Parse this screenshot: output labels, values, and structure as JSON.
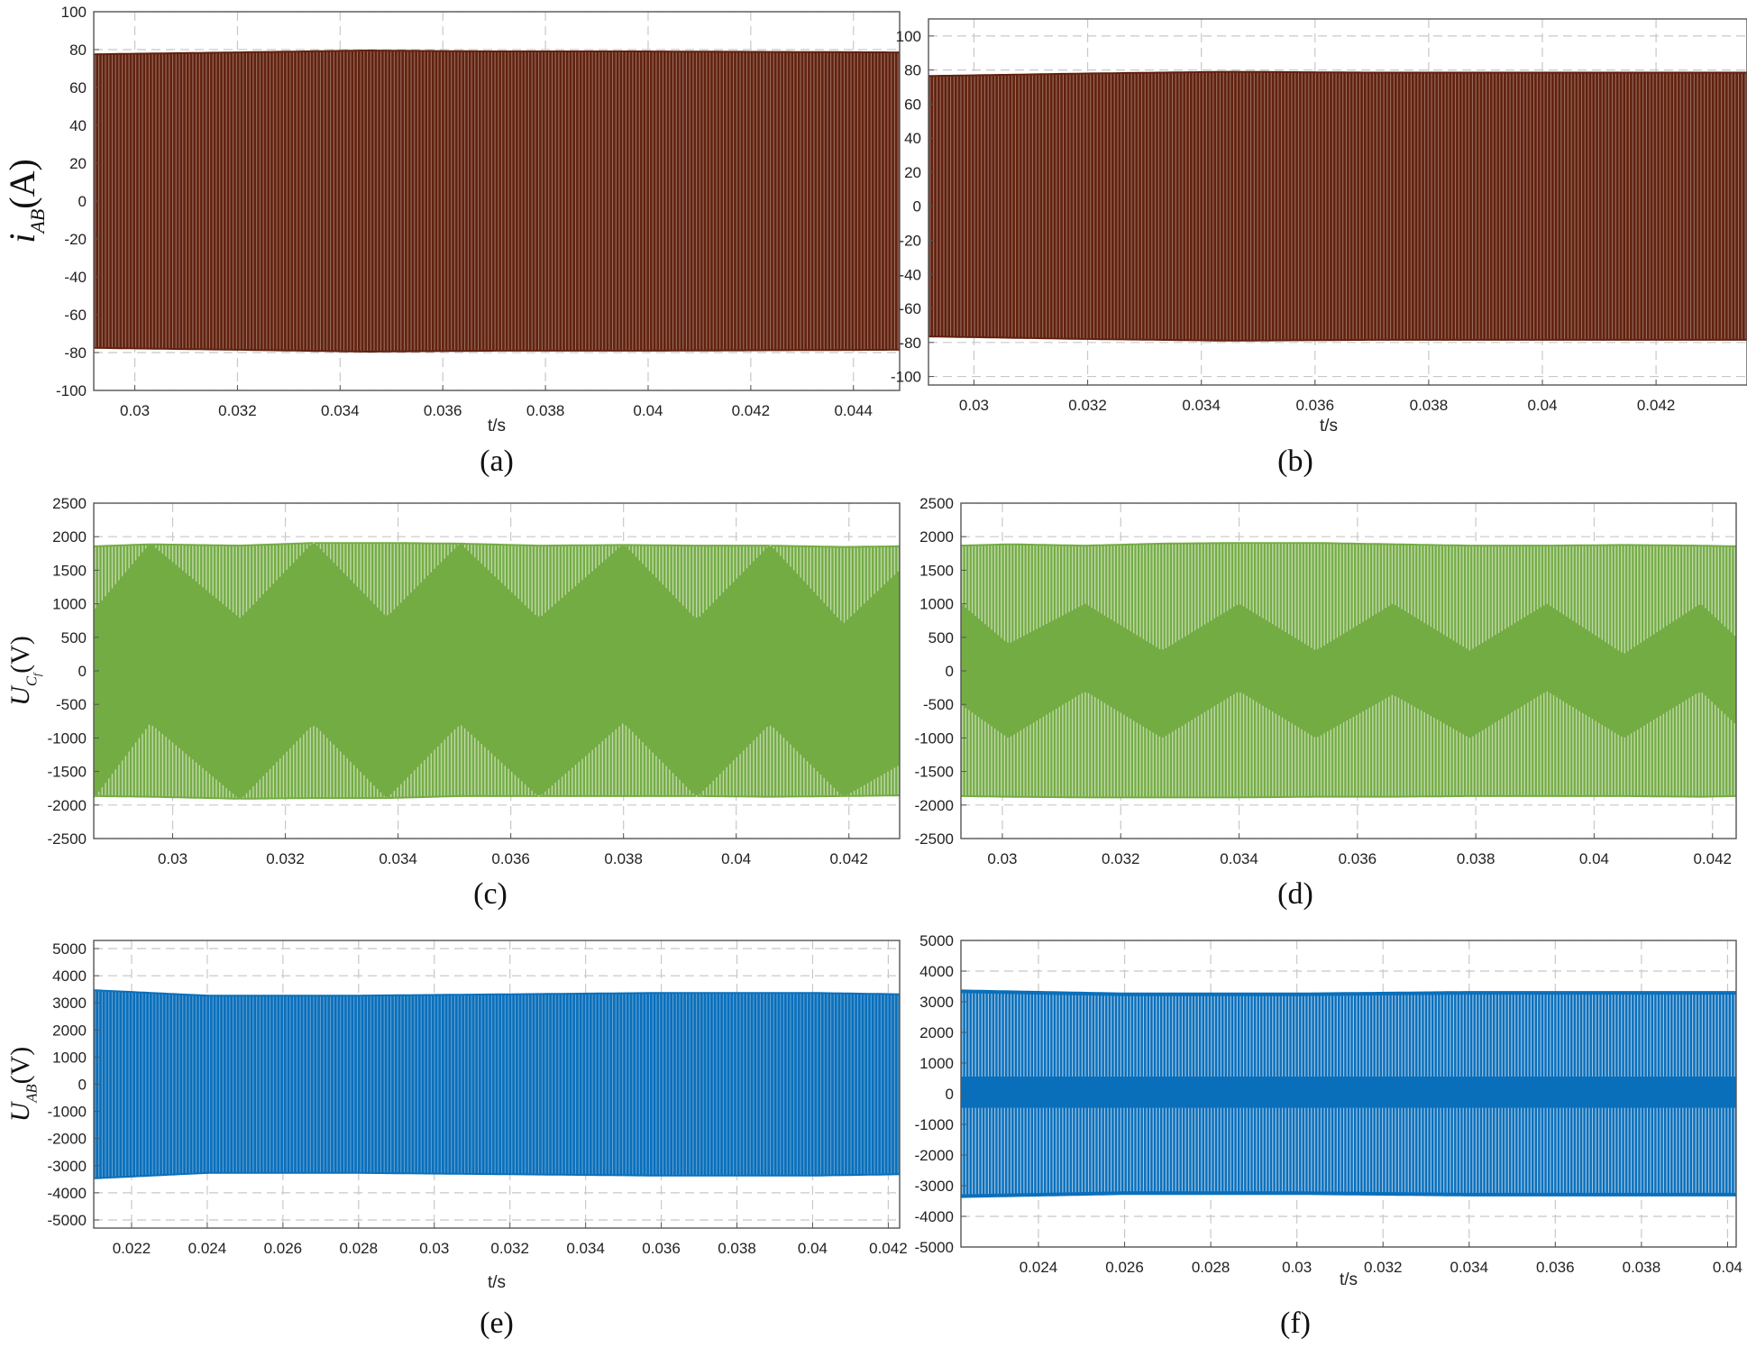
{
  "figure": {
    "colors": {
      "brown": "#62220f",
      "green": "#74ac44",
      "blue": "#0a6fbb",
      "grid": "#c8c8c8",
      "frame": "#555555"
    }
  },
  "chart_data": [
    {
      "id": "a",
      "type": "line",
      "caption": "(a)",
      "xlabel": "t/s",
      "ylabel": {
        "main": "i",
        "sub": "AB",
        "unit": "(A)"
      },
      "xlim": [
        0.0292,
        0.0449
      ],
      "ylim": [
        -100,
        100
      ],
      "xticks": [
        0.03,
        0.032,
        0.034,
        0.036,
        0.038,
        0.04,
        0.042,
        0.044
      ],
      "xtick_labels": [
        "0.03",
        "0.032",
        "0.034",
        "0.036",
        "0.038",
        "0.04",
        "0.042",
        "0.044"
      ],
      "yticks": [
        -100,
        -80,
        -60,
        -40,
        -20,
        0,
        20,
        40,
        60,
        80,
        100
      ],
      "ytick_labels": [
        "-100",
        "-80",
        "-60",
        "-40",
        "-20",
        "0",
        "20",
        "40",
        "60",
        "80",
        "100"
      ],
      "grid": true,
      "color": "brown",
      "series": [
        {
          "x": [
            0.0292,
            0.032,
            0.0345,
            0.037,
            0.04,
            0.0449
          ],
          "upper": [
            78,
            79,
            80,
            79.5,
            79.5,
            79
          ],
          "lower": [
            -78,
            -79,
            -80,
            -79.5,
            -79.5,
            -79
          ]
        }
      ]
    },
    {
      "id": "b",
      "type": "line",
      "caption": "(b)",
      "xlabel": "t/s",
      "ylabel": null,
      "xlim": [
        0.0292,
        0.0436
      ],
      "ylim": [
        -105,
        110
      ],
      "xticks": [
        0.03,
        0.032,
        0.034,
        0.036,
        0.038,
        0.04,
        0.042
      ],
      "xtick_labels": [
        "0.03",
        "0.032",
        "0.034",
        "0.036",
        "0.038",
        "0.04",
        "0.042"
      ],
      "yticks": [
        -100,
        -80,
        -60,
        -40,
        -20,
        0,
        20,
        40,
        60,
        80,
        100
      ],
      "ytick_labels": [
        "-100",
        "-80",
        "-60",
        "-40",
        "-20",
        "0",
        "20",
        "40",
        "60",
        "80",
        "100"
      ],
      "grid": true,
      "color": "brown",
      "series": [
        {
          "x": [
            0.0292,
            0.032,
            0.0345,
            0.037,
            0.04,
            0.0436
          ],
          "upper": [
            77,
            78.5,
            79.5,
            79,
            79,
            79
          ],
          "lower": [
            -77,
            -78.5,
            -79.5,
            -79,
            -79,
            -79
          ]
        }
      ]
    },
    {
      "id": "c",
      "type": "line",
      "caption": "(c)",
      "xlabel": "",
      "ylabel": {
        "main": "U",
        "sub": "C",
        "subsub": "f",
        "unit": "(V)"
      },
      "xlim": [
        0.0286,
        0.0429
      ],
      "ylim": [
        -2500,
        2500
      ],
      "xticks": [
        0.03,
        0.032,
        0.034,
        0.036,
        0.038,
        0.04,
        0.042
      ],
      "xtick_labels": [
        "0.03",
        "0.032",
        "0.034",
        "0.036",
        "0.038",
        "0.04",
        "0.042"
      ],
      "yticks": [
        -2500,
        -2000,
        -1500,
        -1000,
        -500,
        0,
        500,
        1000,
        1500,
        2000,
        2500
      ],
      "ytick_labels": [
        "-2500",
        "-2000",
        "-1500",
        "-1000",
        "-500",
        "0",
        "500",
        "1000",
        "1500",
        "2000",
        "2500"
      ],
      "grid": true,
      "color": "green",
      "series": [
        {
          "x": [
            0.0286,
            0.0296,
            0.0312,
            0.0325,
            0.0338,
            0.0351,
            0.0365,
            0.038,
            0.0393,
            0.0406,
            0.0419,
            0.0429
          ],
          "upper": [
            1870,
            1900,
            1880,
            1920,
            1920,
            1910,
            1880,
            1890,
            1880,
            1880,
            1860,
            1870
          ],
          "lower": [
            -1880,
            -1890,
            -1920,
            -1910,
            -1910,
            -1880,
            -1880,
            -1880,
            -1880,
            -1890,
            -1880,
            -1870
          ],
          "env_upper": [
            900,
            1900,
            780,
            1920,
            800,
            1900,
            780,
            1890,
            760,
            1880,
            700,
            1500
          ],
          "env_lower": [
            -1900,
            -780,
            -1920,
            -790,
            -1900,
            -790,
            -1880,
            -770,
            -1880,
            -790,
            -1880,
            -1400
          ]
        }
      ]
    },
    {
      "id": "d",
      "type": "line",
      "caption": "(d)",
      "xlabel": "",
      "ylabel": null,
      "xlim": [
        0.0293,
        0.0424
      ],
      "ylim": [
        -2500,
        2500
      ],
      "xticks": [
        0.03,
        0.032,
        0.034,
        0.036,
        0.038,
        0.04,
        0.042
      ],
      "xtick_labels": [
        "0.03",
        "0.032",
        "0.034",
        "0.036",
        "0.038",
        "0.04",
        "0.042"
      ],
      "yticks": [
        -2500,
        -2000,
        -1500,
        -1000,
        -500,
        0,
        500,
        1000,
        1500,
        2000,
        2500
      ],
      "ytick_labels": [
        "-2500",
        "-2000",
        "-1500",
        "-1000",
        "-500",
        "0",
        "500",
        "1000",
        "1500",
        "2000",
        "2500"
      ],
      "grid": true,
      "color": "green",
      "series": [
        {
          "x": [
            0.0293,
            0.0301,
            0.0314,
            0.0327,
            0.034,
            0.0353,
            0.0366,
            0.0379,
            0.0392,
            0.0405,
            0.0418,
            0.0424
          ],
          "upper": [
            1880,
            1900,
            1880,
            1910,
            1920,
            1920,
            1900,
            1880,
            1880,
            1890,
            1880,
            1870
          ],
          "lower": [
            -1880,
            -1890,
            -1900,
            -1900,
            -1900,
            -1890,
            -1890,
            -1880,
            -1880,
            -1880,
            -1890,
            -1880
          ],
          "env_upper": [
            1000,
            400,
            1000,
            300,
            1000,
            300,
            1000,
            300,
            1000,
            250,
            1000,
            500
          ],
          "env_lower": [
            -500,
            -1000,
            -300,
            -1000,
            -300,
            -1000,
            -350,
            -1000,
            -300,
            -1000,
            -300,
            -800
          ]
        }
      ]
    },
    {
      "id": "e",
      "type": "line",
      "caption": "(e)",
      "xlabel": "t/s",
      "ylabel": {
        "main": "U",
        "sub": "AB",
        "unit": "(V)"
      },
      "xlim": [
        0.021,
        0.0423
      ],
      "ylim": [
        -5300,
        5300
      ],
      "xticks": [
        0.022,
        0.024,
        0.026,
        0.028,
        0.03,
        0.032,
        0.034,
        0.036,
        0.038,
        0.04,
        0.042
      ],
      "xtick_labels": [
        "0.022",
        "0.024",
        "0.026",
        "0.028",
        "0.03",
        "0.032",
        "0.034",
        "0.036",
        "0.038",
        "0.04",
        "0.042"
      ],
      "yticks": [
        -5000,
        -4000,
        -3000,
        -2000,
        -1000,
        0,
        1000,
        2000,
        3000,
        4000,
        5000
      ],
      "ytick_labels": [
        "-5000",
        "-4000",
        "-3000",
        "-2000",
        "-1000",
        "0",
        "1000",
        "2000",
        "3000",
        "4000",
        "5000"
      ],
      "grid": true,
      "color": "blue",
      "series": [
        {
          "x": [
            0.021,
            0.024,
            0.028,
            0.032,
            0.036,
            0.04,
            0.0423
          ],
          "upper": [
            3500,
            3300,
            3300,
            3350,
            3400,
            3400,
            3350
          ],
          "lower": [
            -3500,
            -3300,
            -3300,
            -3350,
            -3400,
            -3400,
            -3350
          ]
        }
      ]
    },
    {
      "id": "f",
      "type": "line",
      "caption": "(f)",
      "xlabel": "t/s",
      "ylabel": null,
      "xlim": [
        0.0222,
        0.0402
      ],
      "ylim": [
        -5000,
        5000
      ],
      "xticks": [
        0.024,
        0.026,
        0.028,
        0.03,
        0.032,
        0.034,
        0.036,
        0.038,
        0.04
      ],
      "xtick_labels": [
        "0.024",
        "0.026",
        "0.028",
        "0.03",
        "0.032",
        "0.034",
        "0.036",
        "0.038",
        "0.04"
      ],
      "yticks": [
        -5000,
        -4000,
        -3000,
        -2000,
        -1000,
        0,
        1000,
        2000,
        3000,
        4000,
        5000
      ],
      "ytick_labels": [
        "-5000",
        "-4000",
        "-3000",
        "-2000",
        "-1000",
        "0",
        "1000",
        "2000",
        "3000",
        "4000",
        "5000"
      ],
      "grid": true,
      "color": "blue",
      "series": [
        {
          "x": [
            0.0222,
            0.026,
            0.03,
            0.034,
            0.038,
            0.0402
          ],
          "upper": [
            3400,
            3300,
            3300,
            3350,
            3350,
            3350
          ],
          "lower": [
            -3400,
            -3300,
            -3300,
            -3350,
            -3350,
            -3350
          ],
          "band_upper": [
            500,
            500,
            500,
            500,
            500,
            500
          ],
          "band_lower": [
            -400,
            -400,
            -400,
            -400,
            -400,
            -400
          ]
        }
      ]
    }
  ]
}
